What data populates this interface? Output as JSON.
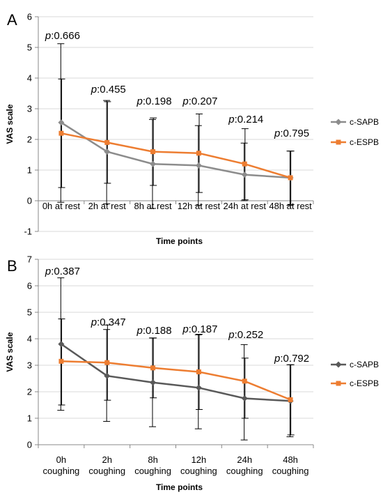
{
  "chart_data": [
    {
      "panel": "A",
      "type": "line",
      "categories": [
        "0h at rest",
        "2h at rest",
        "8h at rest",
        "12h at rest",
        "24h at rest",
        "48h at rest"
      ],
      "xlabel": "Time points",
      "ylabel": "VAS scale",
      "ylim": [
        -1,
        6
      ],
      "yticks": [
        -1,
        0,
        1,
        2,
        3,
        4,
        5,
        6
      ],
      "grid": true,
      "legend": "right",
      "p_prefix": "p",
      "p_values": [
        ":0.666",
        ":0.455",
        ":0.198",
        ":0.207",
        ":0.214",
        ":0.795"
      ],
      "series": [
        {
          "name": "c-SAPB",
          "color": "#8c8c8c",
          "marker": "diamond",
          "values": [
            2.55,
            1.6,
            1.2,
            1.15,
            0.85,
            0.75
          ],
          "error_low": [
            -0.05,
            -0.1,
            -0.25,
            -0.15,
            0.0,
            -0.15
          ],
          "error_high": [
            5.12,
            3.27,
            2.65,
            2.45,
            1.88,
            1.62
          ]
        },
        {
          "name": "c-ESPB",
          "color": "#ed7d31",
          "marker": "square",
          "values": [
            2.2,
            1.9,
            1.6,
            1.55,
            1.2,
            0.75
          ],
          "error_low": [
            0.43,
            0.57,
            0.5,
            0.27,
            0.03,
            -0.12
          ],
          "error_high": [
            3.97,
            3.23,
            2.7,
            2.83,
            2.35,
            1.62
          ]
        }
      ]
    },
    {
      "panel": "B",
      "type": "line",
      "categories": [
        [
          "0h",
          "coughing"
        ],
        [
          "2h",
          "coughing"
        ],
        [
          "8h",
          "coughing"
        ],
        [
          "12h",
          "coughing"
        ],
        [
          "24h",
          "coughing"
        ],
        [
          "48h",
          "coughing"
        ]
      ],
      "xlabel": "Time points",
      "ylabel": "VAS scale",
      "ylim": [
        0,
        7
      ],
      "yticks": [
        0,
        1,
        2,
        3,
        4,
        5,
        6,
        7
      ],
      "grid": true,
      "legend": "right",
      "p_prefix": "p",
      "p_values": [
        ":0.387",
        ":0.347",
        ":0.188",
        ":0.187",
        ":0.252",
        ":0.792"
      ],
      "series": [
        {
          "name": "c-SAPB",
          "color": "#595959",
          "marker": "diamond",
          "values": [
            3.8,
            2.6,
            2.35,
            2.15,
            1.75,
            1.65
          ],
          "error_low": [
            1.3,
            0.88,
            0.68,
            0.6,
            0.18,
            0.3
          ],
          "error_high": [
            6.3,
            4.35,
            4.03,
            4.15,
            3.78,
            3.02
          ]
        },
        {
          "name": "c-ESPB",
          "color": "#ed7d31",
          "marker": "square",
          "values": [
            3.15,
            3.1,
            2.9,
            2.75,
            2.4,
            1.7
          ],
          "error_low": [
            1.5,
            1.68,
            1.77,
            1.33,
            1.0,
            0.37
          ],
          "error_high": [
            4.75,
            4.52,
            4.03,
            4.17,
            3.27,
            3.02
          ]
        }
      ]
    }
  ]
}
